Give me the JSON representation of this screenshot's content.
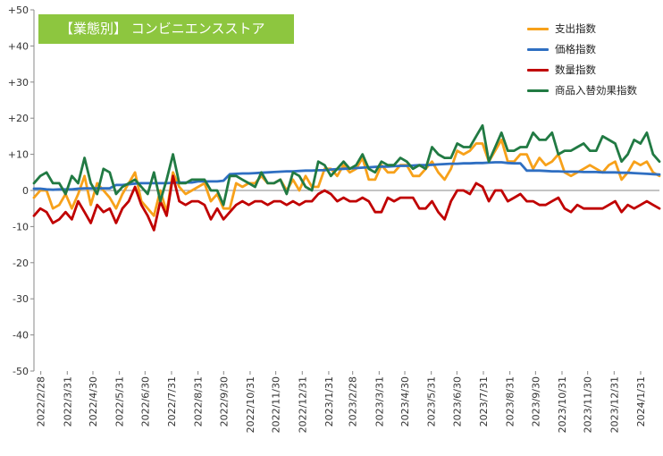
{
  "chart_data": {
    "type": "line",
    "title": "【業態別】 コンビニエンスストア",
    "xlabel": "",
    "ylabel": "",
    "ylim": [
      -50,
      50
    ],
    "yticks": [
      -50,
      -40,
      -30,
      -20,
      -10,
      0,
      10,
      20,
      30,
      40,
      50
    ],
    "ytick_labels": [
      "-50",
      "-40",
      "-30",
      "-20",
      "-10",
      "0",
      "+10",
      "+20",
      "+30",
      "+40",
      "+50"
    ],
    "x_tick_labels": [
      "2022/2/28",
      "2022/3/31",
      "2022/4/30",
      "2022/5/31",
      "2022/6/30",
      "2022/7/31",
      "2022/8/31",
      "2022/9/30",
      "2022/10/31",
      "2022/11/30",
      "2022/12/31",
      "2023/1/31",
      "2023/2/28",
      "2023/3/31",
      "2023/4/30",
      "2023/5/31",
      "2023/6/30",
      "2023/7/31",
      "2023/8/31",
      "2023/9/30",
      "2023/10/31",
      "2023/11/30",
      "2023/12/31",
      "2024/1/31"
    ],
    "x_start": "2022-02-20",
    "x_end": "2024-02-22",
    "grid": false,
    "legend_position": "top-right",
    "colors": {
      "axis": "#888888",
      "title_bg": "#8dc63f",
      "title_text": "#ffffff"
    },
    "series": [
      {
        "name": "支出指数",
        "color": "#f7a11a",
        "values": [
          -2,
          0,
          0,
          -5,
          -4,
          -1,
          -5,
          -1,
          4,
          -4,
          2,
          0,
          -2,
          -5,
          -1,
          2,
          5,
          -3,
          -5,
          -7,
          0,
          -6,
          5,
          1,
          -1,
          0,
          1,
          2,
          -3,
          -1,
          -5,
          -5,
          2,
          1,
          2,
          2,
          4,
          2,
          2,
          3,
          0,
          3,
          0,
          4,
          1,
          1,
          6,
          6,
          4,
          7,
          5,
          6,
          9,
          3,
          3,
          7,
          5,
          5,
          7,
          7,
          4,
          4,
          6,
          8,
          5,
          3,
          6,
          11,
          10,
          11,
          13,
          13,
          8,
          11,
          14,
          8,
          8,
          10,
          10,
          6,
          9,
          7,
          8,
          10,
          5,
          4,
          5,
          6,
          7,
          6,
          5,
          7,
          8,
          3,
          5,
          8,
          7,
          8,
          5,
          4
        ]
      },
      {
        "name": "価格指数",
        "color": "#2f6fc2",
        "values": [
          0.5,
          0.5,
          0.3,
          0.2,
          0.3,
          0.3,
          0.3,
          0.5,
          0.6,
          0.6,
          0.6,
          0.6,
          0.6,
          1.5,
          1.5,
          1.7,
          1.9,
          2.0,
          2.0,
          2.0,
          2.0,
          2.0,
          2.1,
          2.2,
          2.2,
          2.2,
          2.5,
          2.5,
          2.5,
          2.5,
          2.7,
          4.5,
          4.6,
          4.7,
          4.7,
          4.8,
          4.9,
          5.0,
          5.1,
          5.2,
          5.3,
          5.3,
          5.4,
          5.5,
          5.5,
          5.6,
          5.6,
          5.8,
          5.9,
          6.0,
          6.1,
          6.2,
          6.3,
          6.4,
          6.5,
          6.6,
          6.6,
          6.7,
          6.8,
          6.8,
          6.9,
          7.0,
          7.0,
          7.1,
          7.2,
          7.3,
          7.4,
          7.4,
          7.5,
          7.5,
          7.6,
          7.6,
          7.7,
          7.8,
          7.8,
          7.6,
          7.5,
          7.5,
          5.5,
          5.5,
          5.5,
          5.4,
          5.3,
          5.3,
          5.2,
          5.2,
          5.2,
          5.1,
          5.1,
          5.1,
          5.0,
          5.0,
          5.0,
          4.9,
          4.9,
          4.8,
          4.7,
          4.6,
          4.5,
          4.4
        ]
      },
      {
        "name": "数量指数",
        "color": "#c00000",
        "values": [
          -7,
          -5,
          -6,
          -9,
          -8,
          -6,
          -8,
          -3,
          -6,
          -9,
          -4,
          -6,
          -5,
          -9,
          -5,
          -3,
          1,
          -4,
          -7,
          -11,
          -3,
          -7,
          4,
          -3,
          -4,
          -3,
          -3,
          -4,
          -8,
          -5,
          -8,
          -6,
          -4,
          -3,
          -4,
          -3,
          -3,
          -4,
          -3,
          -3,
          -4,
          -3,
          -4,
          -3,
          -3,
          -1,
          0,
          -1,
          -3,
          -2,
          -3,
          -3,
          -2,
          -3,
          -6,
          -6,
          -2,
          -3,
          -2,
          -2,
          -2,
          -5,
          -5,
          -3,
          -6,
          -8,
          -3,
          0,
          0,
          -1,
          2,
          1,
          -3,
          0,
          0,
          -3,
          -2,
          -1,
          -3,
          -3,
          -4,
          -4,
          -3,
          -2,
          -5,
          -6,
          -4,
          -5,
          -5,
          -5,
          -5,
          -4,
          -3,
          -6,
          -4,
          -5,
          -4,
          -3,
          -4,
          -5
        ]
      },
      {
        "name": "商品入替効果指数",
        "color": "#217a43",
        "values": [
          2,
          4,
          5,
          2,
          2,
          -1,
          4,
          2,
          9,
          2,
          -1,
          6,
          5,
          -1,
          1,
          2,
          3,
          1,
          -1,
          5,
          -3,
          3,
          10,
          2,
          2,
          3,
          3,
          3,
          0,
          0,
          -4,
          4,
          4,
          3,
          2,
          1,
          5,
          2,
          2,
          3,
          -1,
          5,
          4,
          1,
          0,
          8,
          7,
          4,
          6,
          8,
          6,
          7,
          10,
          6,
          5,
          8,
          7,
          7,
          9,
          8,
          6,
          7,
          6,
          12,
          10,
          9,
          9,
          13,
          12,
          12,
          15,
          18,
          8,
          12,
          16,
          11,
          11,
          12,
          12,
          16,
          14,
          14,
          16,
          10,
          11,
          11,
          12,
          13,
          11,
          11,
          15,
          14,
          13,
          8,
          10,
          14,
          13,
          16,
          10,
          8
        ]
      }
    ]
  }
}
